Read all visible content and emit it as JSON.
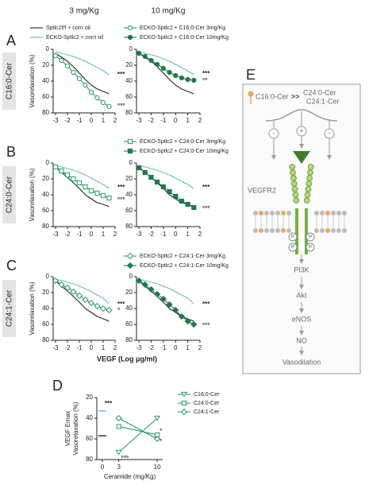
{
  "headers": [
    "3 mg/Kg",
    "10 mg/Kg"
  ],
  "panel_letters": [
    "A",
    "B",
    "C",
    "D"
  ],
  "shared_xlabel": "VEGF (Log μg/ml)",
  "chart_data": [
    {
      "type": "line",
      "row_label": "C16:0-Cer",
      "ylabel": "Vasorelaxation (%)",
      "x": [
        -3,
        -2.5,
        -2,
        -1.5,
        -1,
        -0.5,
        0,
        0.5,
        1,
        1.5
      ],
      "xlim": [
        -3.2,
        2
      ],
      "xticks": [
        -3,
        -2,
        -1,
        0,
        1,
        2
      ],
      "ylim": [
        0,
        80
      ],
      "yticks": [
        0,
        20,
        40,
        60,
        80
      ],
      "invert_y": true,
      "series": [
        {
          "name": "Sptlc2f/f + corn oil",
          "color": "#222222",
          "marker": "none",
          "values": [
            5,
            10,
            15,
            22,
            30,
            38,
            45,
            50,
            53,
            56
          ]
        },
        {
          "name": "ECKO-Sptlc2 + corn oil",
          "color": "#6cc49a",
          "marker": "none",
          "values": [
            3,
            5,
            7,
            9,
            12,
            15,
            19,
            23,
            27,
            32
          ]
        },
        {
          "name": "ECKO-Sptlc2 + C16:0-Cer 3mg/Kg",
          "color": "#2e9a63",
          "marker": "circle-open",
          "values": [
            8,
            14,
            21,
            29,
            37,
            45,
            54,
            61,
            67,
            72
          ]
        }
      ],
      "annotations": [
        {
          "text": "***",
          "x": 2,
          "y": 32
        },
        {
          "text": "°°°",
          "x": 2,
          "y": 72
        }
      ]
    },
    {
      "type": "line",
      "x": [
        -3,
        -2.5,
        -2,
        -1.5,
        -1,
        -0.5,
        0,
        0.5,
        1,
        1.5
      ],
      "xlim": [
        -3.2,
        2
      ],
      "xticks": [
        -3,
        -2,
        -1,
        0,
        1,
        2
      ],
      "ylim": [
        0,
        80
      ],
      "yticks": [
        0,
        20,
        40,
        60,
        80
      ],
      "invert_y": true,
      "series": [
        {
          "color": "#222222",
          "marker": "none",
          "values": [
            5,
            10,
            15,
            22,
            30,
            38,
            45,
            50,
            53,
            56
          ]
        },
        {
          "color": "#6cc49a",
          "marker": "none",
          "values": [
            3,
            5,
            7,
            9,
            12,
            15,
            19,
            23,
            27,
            32
          ]
        },
        {
          "name": "ECKO-Sptlc2 + C16:0-Cer 10mg/Kg",
          "color": "#1f7a4a",
          "marker": "circle",
          "values": [
            5,
            9,
            14,
            19,
            24,
            29,
            33,
            36,
            38,
            39
          ]
        }
      ],
      "annotations": [
        {
          "text": "***",
          "x": 2,
          "y": 31
        },
        {
          "text": "°°",
          "x": 2,
          "y": 40
        }
      ]
    },
    {
      "type": "line",
      "row_label": "C24:0-Cer",
      "ylabel": "Vasorelaxation (%)",
      "x": [
        -3,
        -2.5,
        -2,
        -1.5,
        -1,
        -0.5,
        0,
        0.5,
        1,
        1.5
      ],
      "xlim": [
        -3.2,
        2
      ],
      "xticks": [
        -3,
        -2,
        -1,
        0,
        1,
        2
      ],
      "ylim": [
        0,
        80
      ],
      "yticks": [
        0,
        20,
        40,
        60,
        80
      ],
      "invert_y": true,
      "series": [
        {
          "color": "#222222",
          "marker": "none",
          "values": [
            5,
            12,
            18,
            25,
            32,
            40,
            45,
            50,
            52,
            55
          ]
        },
        {
          "color": "#6cc49a",
          "marker": "none",
          "values": [
            3,
            5,
            7,
            9,
            12,
            15,
            19,
            23,
            27,
            32
          ]
        },
        {
          "name": "ECKO-Sptlc2 + C24:0-Cer 3mg/Kg",
          "color": "#2e9a63",
          "marker": "square-open",
          "values": [
            5,
            10,
            15,
            20,
            25,
            30,
            35,
            38,
            41,
            44
          ]
        }
      ],
      "annotations": [
        {
          "text": "***",
          "x": 2,
          "y": 31
        },
        {
          "text": "°°°",
          "x": 2,
          "y": 47
        }
      ]
    },
    {
      "type": "line",
      "x": [
        -3,
        -2.5,
        -2,
        -1.5,
        -1,
        -0.5,
        0,
        0.5,
        1,
        1.5
      ],
      "xlim": [
        -3.2,
        2
      ],
      "xticks": [
        -3,
        -2,
        -1,
        0,
        1,
        2
      ],
      "ylim": [
        0,
        80
      ],
      "yticks": [
        0,
        20,
        40,
        60,
        80
      ],
      "invert_y": true,
      "series": [
        {
          "color": "#222222",
          "marker": "none",
          "values": [
            5,
            12,
            18,
            25,
            32,
            40,
            45,
            50,
            52,
            55
          ]
        },
        {
          "color": "#6cc49a",
          "marker": "none",
          "values": [
            3,
            5,
            7,
            9,
            12,
            15,
            19,
            23,
            27,
            32
          ]
        },
        {
          "name": "ECKO-Sptlc2 + C24:0-Cer 10mg/Kg",
          "color": "#1f7a4a",
          "marker": "square",
          "values": [
            6,
            12,
            18,
            24,
            30,
            36,
            42,
            48,
            52,
            56
          ]
        }
      ],
      "annotations": [
        {
          "text": "***",
          "x": 2,
          "y": 31
        },
        {
          "text": "°°°",
          "x": 2,
          "y": 58
        }
      ]
    },
    {
      "type": "line",
      "row_label": "C24:1-Cer",
      "ylabel": "Vasorelaxation (%)",
      "x": [
        -3,
        -2.5,
        -2,
        -1.5,
        -1,
        -0.5,
        0,
        0.5,
        1,
        1.5
      ],
      "xlim": [
        -3.2,
        2
      ],
      "xticks": [
        -3,
        -2,
        -1,
        0,
        1,
        2
      ],
      "ylim": [
        0,
        80
      ],
      "yticks": [
        0,
        20,
        40,
        60,
        80
      ],
      "invert_y": true,
      "series": [
        {
          "color": "#222222",
          "marker": "none",
          "values": [
            5,
            12,
            18,
            25,
            32,
            40,
            45,
            50,
            53,
            56
          ]
        },
        {
          "color": "#6cc49a",
          "marker": "none",
          "values": [
            3,
            5,
            7,
            9,
            12,
            15,
            19,
            23,
            27,
            34
          ]
        },
        {
          "name": "ECKO-Sptlc2 + C24:1-Cer 3mg/Kg",
          "color": "#2e9a63",
          "marker": "diamond-open",
          "values": [
            5,
            10,
            14,
            19,
            24,
            29,
            33,
            37,
            40,
            42
          ]
        }
      ],
      "annotations": [
        {
          "text": "***",
          "x": 2,
          "y": 35
        },
        {
          "text": "°",
          "x": 2,
          "y": 43
        }
      ]
    },
    {
      "type": "line",
      "x": [
        -3,
        -2.5,
        -2,
        -1.5,
        -1,
        -0.5,
        0,
        0.5,
        1,
        1.5
      ],
      "xlim": [
        -3.2,
        2
      ],
      "xticks": [
        -3,
        -2,
        -1,
        0,
        1,
        2
      ],
      "ylim": [
        0,
        80
      ],
      "yticks": [
        0,
        20,
        40,
        60,
        80
      ],
      "invert_y": true,
      "series": [
        {
          "color": "#222222",
          "marker": "none",
          "values": [
            5,
            12,
            18,
            25,
            32,
            40,
            45,
            50,
            53,
            56
          ]
        },
        {
          "color": "#6cc49a",
          "marker": "none",
          "values": [
            3,
            5,
            7,
            9,
            12,
            15,
            19,
            23,
            27,
            34
          ]
        },
        {
          "name": "ECKO-Sptlc2 + C24:1-Cer 10mg/Kg",
          "color": "#1f7a4a",
          "marker": "diamond",
          "values": [
            5,
            10,
            16,
            22,
            28,
            35,
            42,
            50,
            56,
            60
          ]
        }
      ],
      "annotations": [
        {
          "text": "***",
          "x": 2,
          "y": 35
        },
        {
          "text": "°°°",
          "x": 2,
          "y": 62
        }
      ]
    },
    {
      "type": "line",
      "ylabel": [
        "VEGF Emax",
        "Vasorelaxation (%)"
      ],
      "xlabel": "Ceramide (mg/Kg)",
      "x": [
        0,
        3,
        10
      ],
      "xlim": [
        -1,
        11
      ],
      "xticks": [
        0,
        3,
        10
      ],
      "ylim": [
        20,
        80
      ],
      "yticks": [
        20,
        40,
        60,
        80
      ],
      "invert_y": true,
      "series": [
        {
          "name": "C16:0-Cer",
          "color": "#2e9a63",
          "marker": "triangle-open",
          "values": [
            null,
            73,
            40
          ]
        },
        {
          "name": "C24:0-Cer",
          "color": "#2e9a63",
          "marker": "square-open",
          "values": [
            null,
            48,
            56
          ]
        },
        {
          "name": "C24:1-Cer",
          "color": "#2e9a63",
          "marker": "diamond-open",
          "values": [
            null,
            40,
            60
          ]
        },
        {
          "color": "#222222",
          "marker": "dash",
          "values": [
            57,
            null,
            null
          ]
        },
        {
          "color": "#6cc49a",
          "marker": "dash",
          "values": [
            33,
            null,
            null
          ]
        }
      ],
      "annotations": [
        {
          "text": "***",
          "x": 0,
          "y": 26
        },
        {
          "text": "°°°",
          "x": 3,
          "y": 79
        },
        {
          "text": "°",
          "x": 10,
          "y": 53
        },
        {
          "text": "°",
          "x": 10,
          "y": 63
        }
      ]
    }
  ],
  "diagram": {
    "letter": "E",
    "ligand": "C16:0-Cer",
    "relation": ">>",
    "others": [
      "C24:0-Cer",
      "C24:1-Cer"
    ],
    "effects": [
      "-",
      "+",
      "-"
    ],
    "receptor": "VEGFR2",
    "phospho": [
      "P",
      "P",
      "P",
      "P"
    ],
    "pathway": [
      "PI3K",
      "Akt",
      "eNOS",
      "NO",
      "Vasodilation"
    ]
  }
}
